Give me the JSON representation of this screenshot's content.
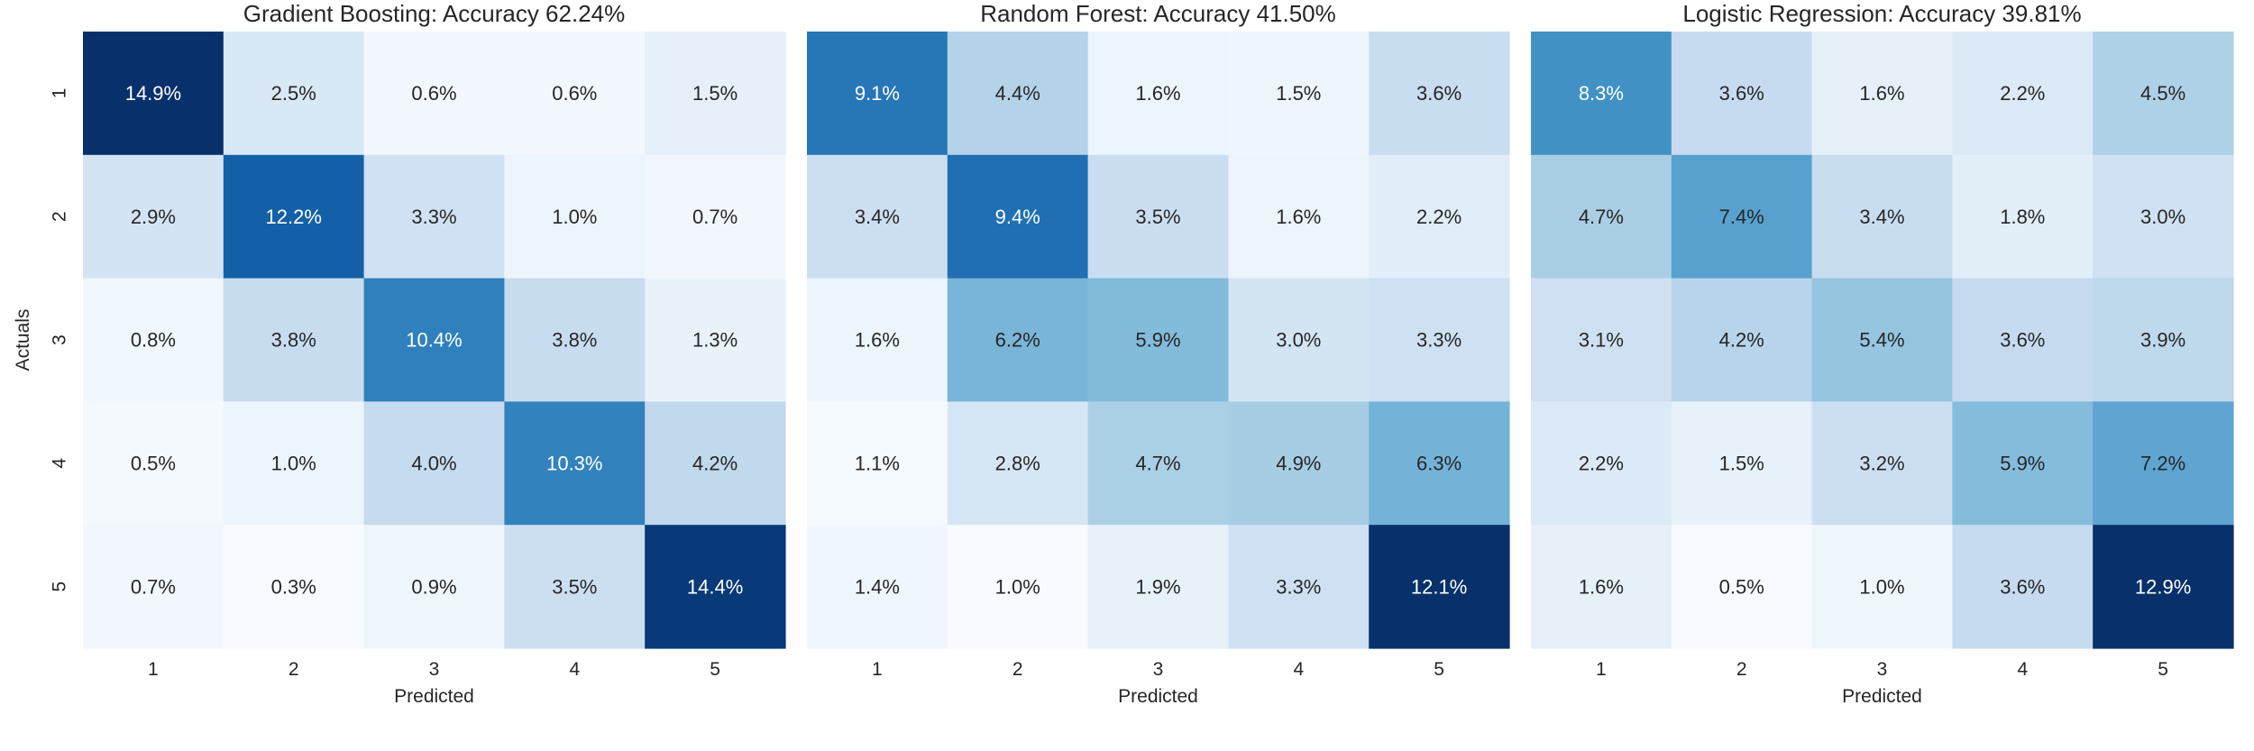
{
  "chart_data": [
    {
      "type": "heatmap",
      "title": "Gradient Boosting: Accuracy 62.24%",
      "xlabel": "Predicted",
      "ylabel": "Actuals",
      "x_categories": [
        "1",
        "2",
        "3",
        "4",
        "5"
      ],
      "y_categories": [
        "1",
        "2",
        "3",
        "4",
        "5"
      ],
      "values": [
        [
          14.9,
          2.5,
          0.6,
          0.6,
          1.5
        ],
        [
          2.9,
          12.2,
          3.3,
          1.0,
          0.7
        ],
        [
          0.8,
          3.8,
          10.4,
          3.8,
          1.3
        ],
        [
          0.5,
          1.0,
          4.0,
          10.3,
          4.2
        ],
        [
          0.7,
          0.3,
          0.9,
          3.5,
          14.4
        ]
      ],
      "labels": [
        [
          "14.9%",
          "2.5%",
          "0.6%",
          "0.6%",
          "1.5%"
        ],
        [
          "2.9%",
          "12.2%",
          "3.3%",
          "1.0%",
          "0.7%"
        ],
        [
          "0.8%",
          "3.8%",
          "10.4%",
          "3.8%",
          "1.3%"
        ],
        [
          "0.5%",
          "1.0%",
          "4.0%",
          "10.3%",
          "4.2%"
        ],
        [
          "0.7%",
          "0.3%",
          "0.9%",
          "3.5%",
          "14.4%"
        ]
      ],
      "colormap": "Blues",
      "colorbar": false
    },
    {
      "type": "heatmap",
      "title": "Random Forest: Accuracy 41.50%",
      "xlabel": "Predicted",
      "ylabel": "",
      "x_categories": [
        "1",
        "2",
        "3",
        "4",
        "5"
      ],
      "y_categories": [],
      "values": [
        [
          9.1,
          4.4,
          1.6,
          1.5,
          3.6
        ],
        [
          3.4,
          9.4,
          3.5,
          1.6,
          2.2
        ],
        [
          1.6,
          6.2,
          5.9,
          3.0,
          3.3
        ],
        [
          1.1,
          2.8,
          4.7,
          4.9,
          6.3
        ],
        [
          1.4,
          1.0,
          1.9,
          3.3,
          12.1
        ]
      ],
      "labels": [
        [
          "9.1%",
          "4.4%",
          "1.6%",
          "1.5%",
          "3.6%"
        ],
        [
          "3.4%",
          "9.4%",
          "3.5%",
          "1.6%",
          "2.2%"
        ],
        [
          "1.6%",
          "6.2%",
          "5.9%",
          "3.0%",
          "3.3%"
        ],
        [
          "1.1%",
          "2.8%",
          "4.7%",
          "4.9%",
          "6.3%"
        ],
        [
          "1.4%",
          "1.0%",
          "1.9%",
          "3.3%",
          "12.1%"
        ]
      ],
      "colormap": "Blues",
      "colorbar": false
    },
    {
      "type": "heatmap",
      "title": "Logistic Regression: Accuracy 39.81%",
      "xlabel": "Predicted",
      "ylabel": "",
      "x_categories": [
        "1",
        "2",
        "3",
        "4",
        "5"
      ],
      "y_categories": [],
      "values": [
        [
          8.3,
          3.6,
          1.6,
          2.2,
          4.5
        ],
        [
          4.7,
          7.4,
          3.4,
          1.8,
          3.0
        ],
        [
          3.1,
          4.2,
          5.4,
          3.6,
          3.9
        ],
        [
          2.2,
          1.5,
          3.2,
          5.9,
          7.2
        ],
        [
          1.6,
          0.5,
          1.0,
          3.6,
          12.9
        ]
      ],
      "labels": [
        [
          "8.3%",
          "3.6%",
          "1.6%",
          "2.2%",
          "4.5%"
        ],
        [
          "4.7%",
          "7.4%",
          "3.4%",
          "1.8%",
          "3.0%"
        ],
        [
          "3.1%",
          "4.2%",
          "5.4%",
          "3.6%",
          "3.9%"
        ],
        [
          "2.2%",
          "1.5%",
          "3.2%",
          "5.9%",
          "7.2%"
        ],
        [
          "1.6%",
          "0.5%",
          "1.0%",
          "3.6%",
          "12.9%"
        ]
      ],
      "colormap": "Blues",
      "colorbar": false
    }
  ]
}
